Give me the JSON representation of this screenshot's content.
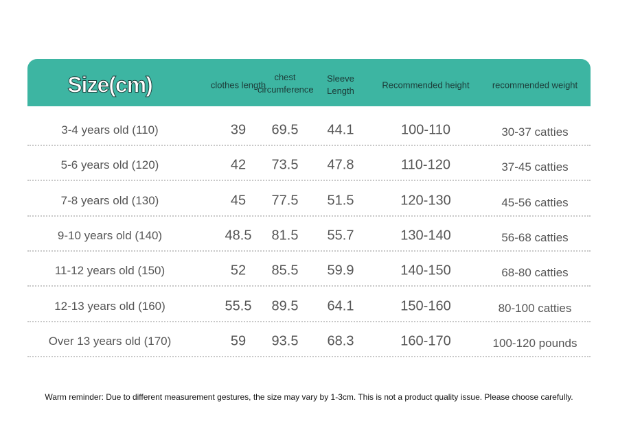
{
  "table": {
    "headers": [
      "Size(cm)",
      "clothes length",
      "chest circumference",
      "Sleeve Length",
      "Recommended height",
      "recommended weight"
    ],
    "rows": [
      [
        "3-4 years old (110)",
        "39",
        "69.5",
        "44.1",
        "100-110",
        "30-37 catties"
      ],
      [
        "5-6 years old (120)",
        "42",
        "73.5",
        "47.8",
        "110-120",
        "37-45 catties"
      ],
      [
        "7-8 years old (130)",
        "45",
        "77.5",
        "51.5",
        "120-130",
        "45-56 catties"
      ],
      [
        "9-10 years old (140)",
        "48.5",
        "81.5",
        "55.7",
        "130-140",
        "56-68 catties"
      ],
      [
        "11-12 years old (150)",
        "52",
        "85.5",
        "59.9",
        "140-150",
        "68-80 catties"
      ],
      [
        "12-13 years old (160)",
        "55.5",
        "89.5",
        "64.1",
        "150-160",
        "80-100 catties"
      ],
      [
        "Over 13 years old (170)",
        "59",
        "93.5",
        "68.3",
        "160-170",
        "100-120 pounds"
      ]
    ]
  },
  "note": "Warm reminder: Due to different measurement gestures, the size may vary by 1-3cm. This is not a product quality issue. Please choose carefully."
}
